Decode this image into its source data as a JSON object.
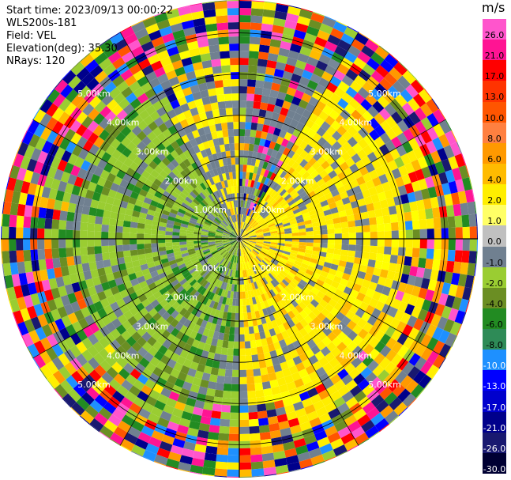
{
  "header": {
    "start_time": "Start time: 2023/09/13 00:00:22",
    "instrument": "WLS200s-181",
    "field": "Field: VEL",
    "elevation": "Elevation(deg): 35.30",
    "nrays": "NRays: 120"
  },
  "colorbar": {
    "unit": "m/s",
    "ticks": [
      "26.0",
      "21.0",
      "17.0",
      "13.0",
      "10.0",
      "8.0",
      "6.0",
      "4.0",
      "2.0",
      "1.0",
      "0.0",
      "-1.0",
      "-2.0",
      "-4.0",
      "-6.0",
      "-8.0",
      "-10.0",
      "-13.0",
      "-17.0",
      "-21.0",
      "-26.0",
      "-30.0"
    ],
    "colors": [
      "#ff55cc",
      "#ff1493",
      "#ff0000",
      "#ff3300",
      "#ff5500",
      "#ff8040",
      "#ff9900",
      "#ffbb00",
      "#ffee00",
      "#ffff66",
      "#c0c0c0",
      "#708090",
      "#9acd32",
      "#6b8e23",
      "#228b22",
      "#2e8b57",
      "#1e90ff",
      "#0000ff",
      "#0000cd",
      "#00008b",
      "#191970",
      "#000033"
    ]
  },
  "chart_data": {
    "type": "heatmap",
    "projection": "polar PPI",
    "title": "",
    "range_ring_labels": [
      "1.00km",
      "2.00km",
      "3.00km",
      "4.00km",
      "5.00km"
    ],
    "range_rings_km": [
      1,
      2,
      3,
      4,
      5
    ],
    "max_range_km": 5.8,
    "n_rays": 120,
    "field": "VEL",
    "unit": "m/s",
    "vmin": -30.0,
    "vmax": 30.0,
    "description_regions": [
      {
        "sector": "north",
        "dominant": "mixed noise"
      },
      {
        "sector": "east",
        "dominant": "positive 1-4 m/s"
      },
      {
        "sector": "west",
        "dominant": "negative -1 to -6 m/s"
      },
      {
        "sector": "outer ring",
        "dominant": "noise"
      }
    ]
  }
}
